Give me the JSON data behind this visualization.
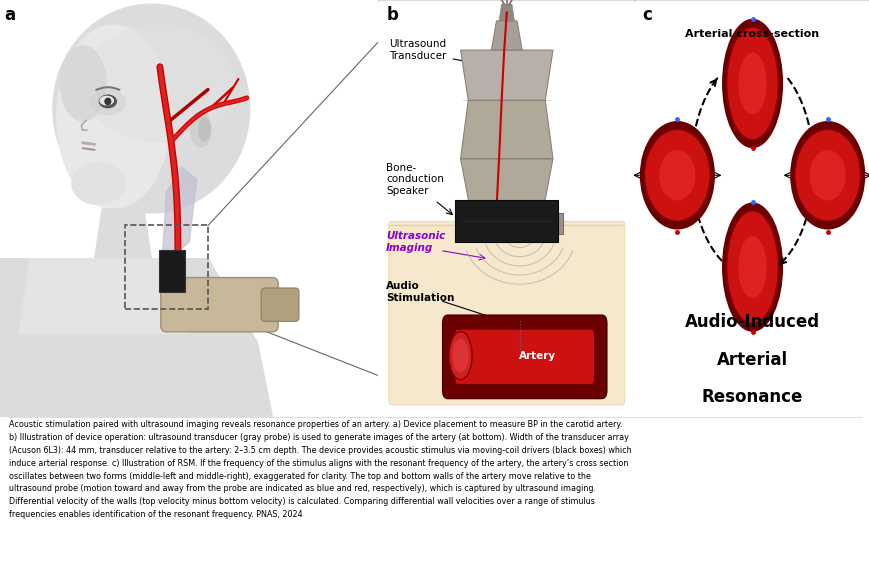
{
  "bg_color": "#ffffff",
  "fig_width": 8.7,
  "fig_height": 5.64,
  "panel_a_label": "a",
  "panel_b_label": "b",
  "panel_c_label": "c",
  "panel_b_title1": "Ultrasound",
  "panel_b_title2": "Transducer",
  "panel_b_bone": "Bone-\nconduction\nSpeaker",
  "panel_b_ultrasonic": "Ultrasonic\nImaging",
  "panel_b_audio": "Audio\nStimulation",
  "panel_b_artery": "Artery",
  "panel_c_top": "Arterial cross-section",
  "panel_c_bottom1": "Audio-Induced",
  "panel_c_bottom2": "Arterial",
  "panel_c_bottom3": "Resonance",
  "caption": "Acoustic stimulation paired with ultrasound imaging reveals resonance properties of an artery. a) Device placement to measure BP in the carotid artery.\nb) Illustration of device operation: ultrasound transducer (gray probe) is used to generate images of the artery (at bottom). Width of the transducer array\n(Acuson 6L3): 44 mm, transducer relative to the artery: 2–3.5 cm depth. The device provides acoustic stimulus via moving-coil drivers (black boxes) which\ninduce arterial response. c) Illustration of RSM. If the frequency of the stimulus aligns with the resonant frequency of the artery, the artery’s cross section\noscillates between two forms (middle-left and middle-right), exaggerated for clarity. The top and bottom walls of the artery move relative to the\nultrasound probe (motion toward and away from the probe are indicated as blue and red, respectively), which is captured by ultrasound imaging.\nDifferential velocity of the walls (top velocity minus bottom velocity) is calculated. Comparing differential wall velocities over a range of stimulus\nfrequencies enables identification of the resonant frequency. PNAS, 2024",
  "ultrasonic_color": "#8b00cc",
  "artery_dark": "#6b0000",
  "artery_red": "#cc1111",
  "artery_bright": "#dd2222",
  "skin_color": "#f5e8cc",
  "skin_dark": "#e8d0a0",
  "probe_color": "#b0a898",
  "probe_dark": "#8a8278",
  "speaker_color": "#1a1a1a",
  "dashed_box_color": "#666666",
  "head_color": "#e0e0e0",
  "head_shadow": "#c8c8c8",
  "neck_muscle_color": "#c0bfd0"
}
